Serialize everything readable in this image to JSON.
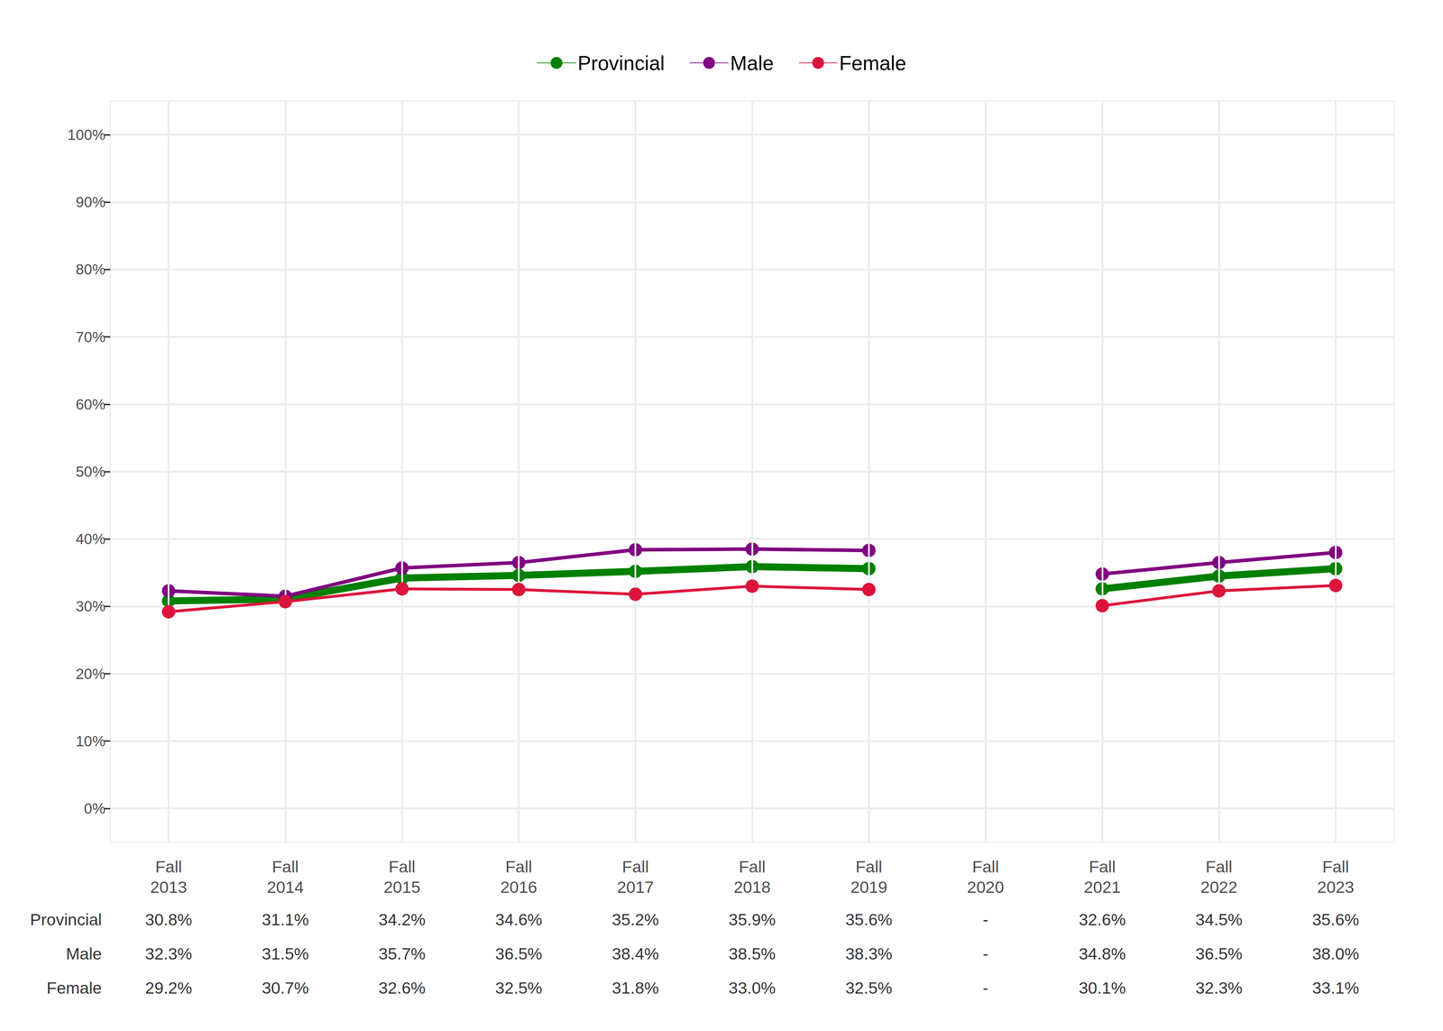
{
  "chart_data": {
    "type": "line",
    "categories": [
      "Fall 2013",
      "Fall 2014",
      "Fall 2015",
      "Fall 2016",
      "Fall 2017",
      "Fall 2018",
      "Fall 2019",
      "Fall 2020",
      "Fall 2021",
      "Fall 2022",
      "Fall 2023"
    ],
    "series": [
      {
        "name": "Provincial",
        "color": "#008000",
        "marker": "circle",
        "values": [
          30.8,
          31.1,
          34.2,
          34.6,
          35.2,
          35.9,
          35.6,
          null,
          32.6,
          34.5,
          35.6
        ],
        "value_labels": [
          "30.8%",
          "31.1%",
          "34.2%",
          "34.6%",
          "35.2%",
          "35.9%",
          "35.6%",
          "-",
          "32.6%",
          "34.5%",
          "35.6%"
        ]
      },
      {
        "name": "Male",
        "color": "#800080",
        "marker": "circle",
        "values": [
          32.3,
          31.5,
          35.7,
          36.5,
          38.4,
          38.5,
          38.3,
          null,
          34.8,
          36.5,
          38.0
        ],
        "value_labels": [
          "32.3%",
          "31.5%",
          "35.7%",
          "36.5%",
          "38.4%",
          "38.5%",
          "38.3%",
          "-",
          "34.8%",
          "36.5%",
          "38.0%"
        ]
      },
      {
        "name": "Female",
        "color": "#DC143C",
        "marker": "circle",
        "values": [
          29.2,
          30.7,
          32.6,
          32.5,
          31.8,
          33.0,
          32.5,
          null,
          30.1,
          32.3,
          33.1
        ],
        "value_labels": [
          "29.2%",
          "30.7%",
          "32.6%",
          "32.5%",
          "31.8%",
          "33.0%",
          "32.5%",
          "-",
          "30.1%",
          "32.3%",
          "33.1%"
        ]
      }
    ],
    "ylim": [
      -5,
      105
    ],
    "yticks": [
      {
        "value": 0,
        "label": "0%"
      },
      {
        "value": 10,
        "label": "10%"
      },
      {
        "value": 20,
        "label": "20%"
      },
      {
        "value": 30,
        "label": "30%"
      },
      {
        "value": 40,
        "label": "40%"
      },
      {
        "value": 50,
        "label": "50%"
      },
      {
        "value": 60,
        "label": "60%"
      },
      {
        "value": 70,
        "label": "70%"
      },
      {
        "value": 80,
        "label": "80%"
      },
      {
        "value": 90,
        "label": "90%"
      },
      {
        "value": 100,
        "label": "100%"
      }
    ],
    "grid": true,
    "legend": "top"
  }
}
